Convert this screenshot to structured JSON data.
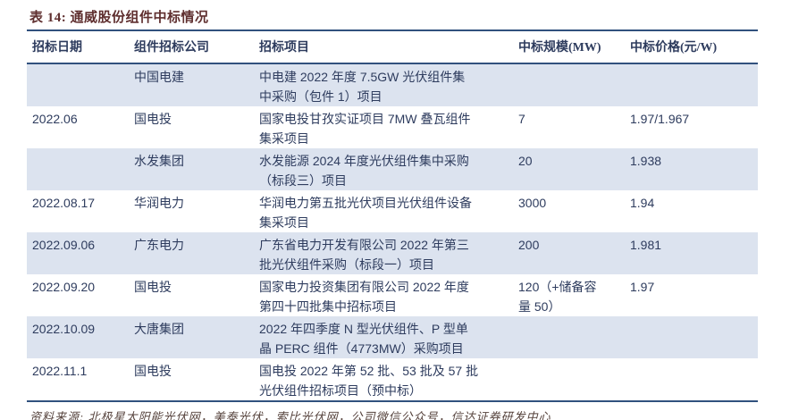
{
  "title": "表 14: 通威股份组件中标情况",
  "colors": {
    "rule": "#31517e",
    "band": "#dce3ef",
    "body_text": "#2e3c5e",
    "title_text": "#5f2f2f"
  },
  "table": {
    "columns": [
      "招标日期",
      "组件招标公司",
      "招标项目",
      "中标规模(MW)",
      "中标价格(元/W)"
    ],
    "rows": [
      {
        "date": "",
        "company": "中国电建",
        "project": "中电建 2022 年度 7.5GW 光伏组件集\n中采购（包件 1）项目",
        "scale": "",
        "price": ""
      },
      {
        "date": "2022.06",
        "company": "国电投",
        "project": "国家电投甘孜实证项目 7MW 叠瓦组件\n集采项目",
        "scale": "7",
        "price": "1.97/1.967"
      },
      {
        "date": "",
        "company": "水发集团",
        "project": "水发能源 2024 年度光伏组件集中采购\n（标段三）项目",
        "scale": "20",
        "price": "1.938"
      },
      {
        "date": "2022.08.17",
        "company": "华润电力",
        "project": "华润电力第五批光伏项目光伏组件设备\n集采项目",
        "scale": "3000",
        "price": "1.94"
      },
      {
        "date": "2022.09.06",
        "company": "广东电力",
        "project": "广东省电力开发有限公司 2022 年第三\n批光伏组件采购（标段一）项目",
        "scale": "200",
        "price": "1.981"
      },
      {
        "date": "2022.09.20",
        "company": "国电投",
        "project": "国家电力投资集团有限公司 2022 年度\n第四十四批集中招标项目",
        "scale": "120（+储备容\n量 50）",
        "price": "1.97"
      },
      {
        "date": "2022.10.09",
        "company": "大唐集团",
        "project": "2022 年四季度 N 型光伏组件、P 型单\n晶 PERC 组件（4773MW）采购项目",
        "scale": "",
        "price": ""
      },
      {
        "date": "2022.11.1",
        "company": "国电投",
        "project": "国电投 2022 年第 52 批、53 批及 57 批\n光伏组件招标项目（预中标）",
        "scale": "",
        "price": ""
      }
    ]
  },
  "source": "资料来源: 北极星太阳能光伏网，美泰光伏，索比光伏网，公司微信公众号，信达证券研发中心"
}
